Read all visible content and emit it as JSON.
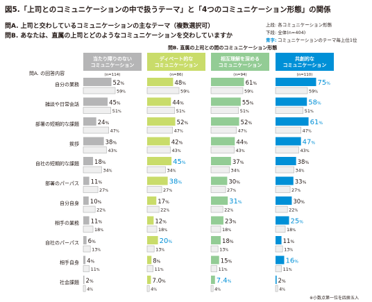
{
  "figure_title": "図5.「上司とのコミュニケーションの中で扱うテーマ」と「4つのコミュニケーション形態」の関係",
  "question_a": "問A. 上司と交わしているコミュニケーションの主なテーマ（複数選択可）",
  "question_b": "問B. あなたは、直属の上司とどのようなコミュニケーションを交わしていますか",
  "legend_notes": [
    "上段: 各コミュニケーション形態",
    "下段: 全体(n=404)"
  ],
  "legend_highlight_label": "青字:",
  "legend_highlight_text": "コミュニケーションのテーマ毎上位1位",
  "axis_caption": "問B. 直属の上司との間のコミュニケーション形態",
  "row_header": "問A. の回答内容",
  "footnote": "※小数点第一位を四捨五入",
  "colors": {
    "gray": "#b5b5b6",
    "yellow": "#c9dc6a",
    "green": "#93cc95",
    "blue": "#0090d7",
    "overall": "#efefef",
    "highlight_text": "#0090d7"
  },
  "chart_data": {
    "type": "bar",
    "groups": [
      {
        "name": "当たり障りのない\nコミュニケーション",
        "n": "(n=114)",
        "color": "gray",
        "values": [
          "52",
          "45",
          "24",
          "38",
          "18",
          "11",
          "10",
          "11",
          "6",
          "4",
          "2"
        ],
        "top": []
      },
      {
        "name": "ディベート的な\nコミュニケーション",
        "n": "(n=86)",
        "color": "yellow",
        "values": [
          "48",
          "44",
          "52",
          "42",
          "45",
          "38",
          "17",
          "12",
          "20",
          "8",
          "7.0"
        ],
        "top": [
          4,
          5,
          8
        ]
      },
      {
        "name": "相互理解を深める\nコミュニケーション",
        "n": "(n=94)",
        "color": "green",
        "values": [
          "61",
          "55",
          "52",
          "44",
          "37",
          "30",
          "31",
          "23",
          "18",
          "15",
          "7.4"
        ],
        "top": [
          6,
          10
        ]
      },
      {
        "name": "共創的な\nコミュニケーション",
        "n": "(n=110)",
        "color": "blue",
        "values": [
          "75",
          "58",
          "61",
          "47",
          "38",
          "33",
          "30",
          "25",
          "11",
          "16",
          "2"
        ],
        "top": [
          0,
          1,
          2,
          3,
          7,
          9
        ]
      }
    ],
    "categories": [
      "自分の業務",
      "雑談や日常会話",
      "部署の短期的な課題",
      "挨拶",
      "自社の短期的な課題",
      "部署のパーパス",
      "自分自身",
      "相手の業務",
      "自社のパーパス",
      "相手自身",
      "社会課題"
    ],
    "overall_values": [
      "59",
      "51",
      "47",
      "43",
      "34",
      "27",
      "22",
      "18",
      "13",
      "11",
      "4"
    ],
    "unit": "%"
  }
}
